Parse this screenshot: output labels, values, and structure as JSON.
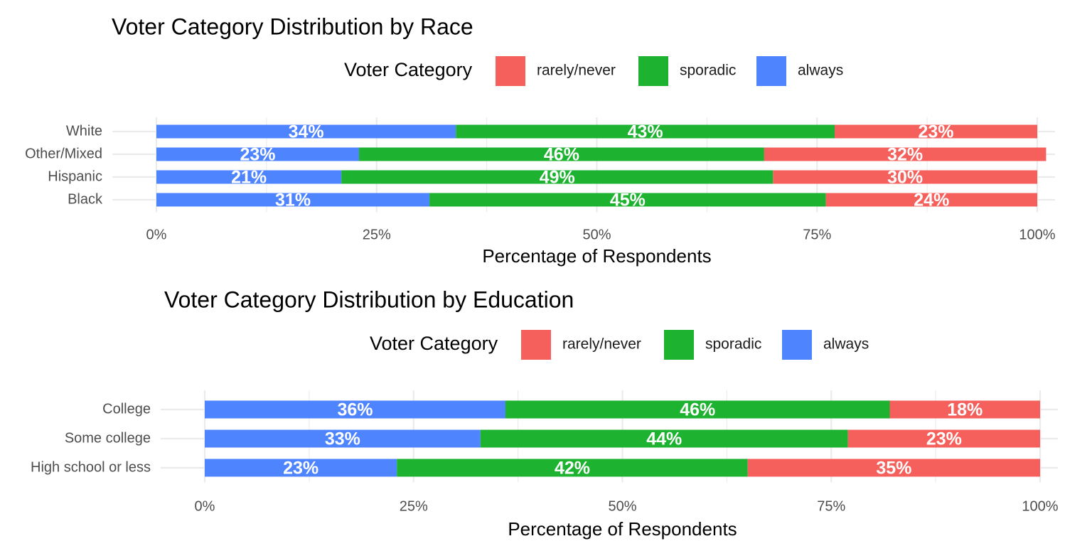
{
  "chart_data": [
    {
      "type": "bar",
      "orientation": "horizontal",
      "stacked": true,
      "title": "Voter Category Distribution by Race",
      "xlabel": "Percentage of Respondents",
      "ylabel": "",
      "xlim": [
        0,
        100
      ],
      "x_ticks": [
        "0%",
        "25%",
        "50%",
        "75%",
        "100%"
      ],
      "legend": {
        "title": "Voter Category",
        "placement": "top",
        "entries": [
          "rarely/never",
          "sporadic",
          "always"
        ]
      },
      "categories": [
        "White",
        "Other/Mixed",
        "Hispanic",
        "Black"
      ],
      "series": [
        {
          "name": "always",
          "color": "#4f84ff",
          "values": [
            34,
            23,
            21,
            31
          ],
          "labels": [
            "34%",
            "23%",
            "21%",
            "31%"
          ]
        },
        {
          "name": "sporadic",
          "color": "#1db22f",
          "values": [
            43,
            46,
            49,
            45
          ],
          "labels": [
            "43%",
            "46%",
            "49%",
            "45%"
          ]
        },
        {
          "name": "rarely/never",
          "color": "#f5605c",
          "values": [
            23,
            32,
            30,
            24
          ],
          "labels": [
            "23%",
            "32%",
            "30%",
            "24%"
          ]
        }
      ]
    },
    {
      "type": "bar",
      "orientation": "horizontal",
      "stacked": true,
      "title": "Voter Category Distribution by Education",
      "xlabel": "Percentage of Respondents",
      "ylabel": "",
      "xlim": [
        0,
        100
      ],
      "x_ticks": [
        "0%",
        "25%",
        "50%",
        "75%",
        "100%"
      ],
      "legend": {
        "title": "Voter Category",
        "placement": "top",
        "entries": [
          "rarely/never",
          "sporadic",
          "always"
        ]
      },
      "categories": [
        "College",
        "Some college",
        "High school or less"
      ],
      "series": [
        {
          "name": "always",
          "color": "#4f84ff",
          "values": [
            36,
            33,
            23
          ],
          "labels": [
            "36%",
            "33%",
            "23%"
          ]
        },
        {
          "name": "sporadic",
          "color": "#1db22f",
          "values": [
            46,
            44,
            42
          ],
          "labels": [
            "46%",
            "44%",
            "42%"
          ]
        },
        {
          "name": "rarely/never",
          "color": "#f5605c",
          "values": [
            18,
            23,
            35
          ],
          "labels": [
            "18%",
            "23%",
            "35%"
          ]
        }
      ]
    }
  ]
}
